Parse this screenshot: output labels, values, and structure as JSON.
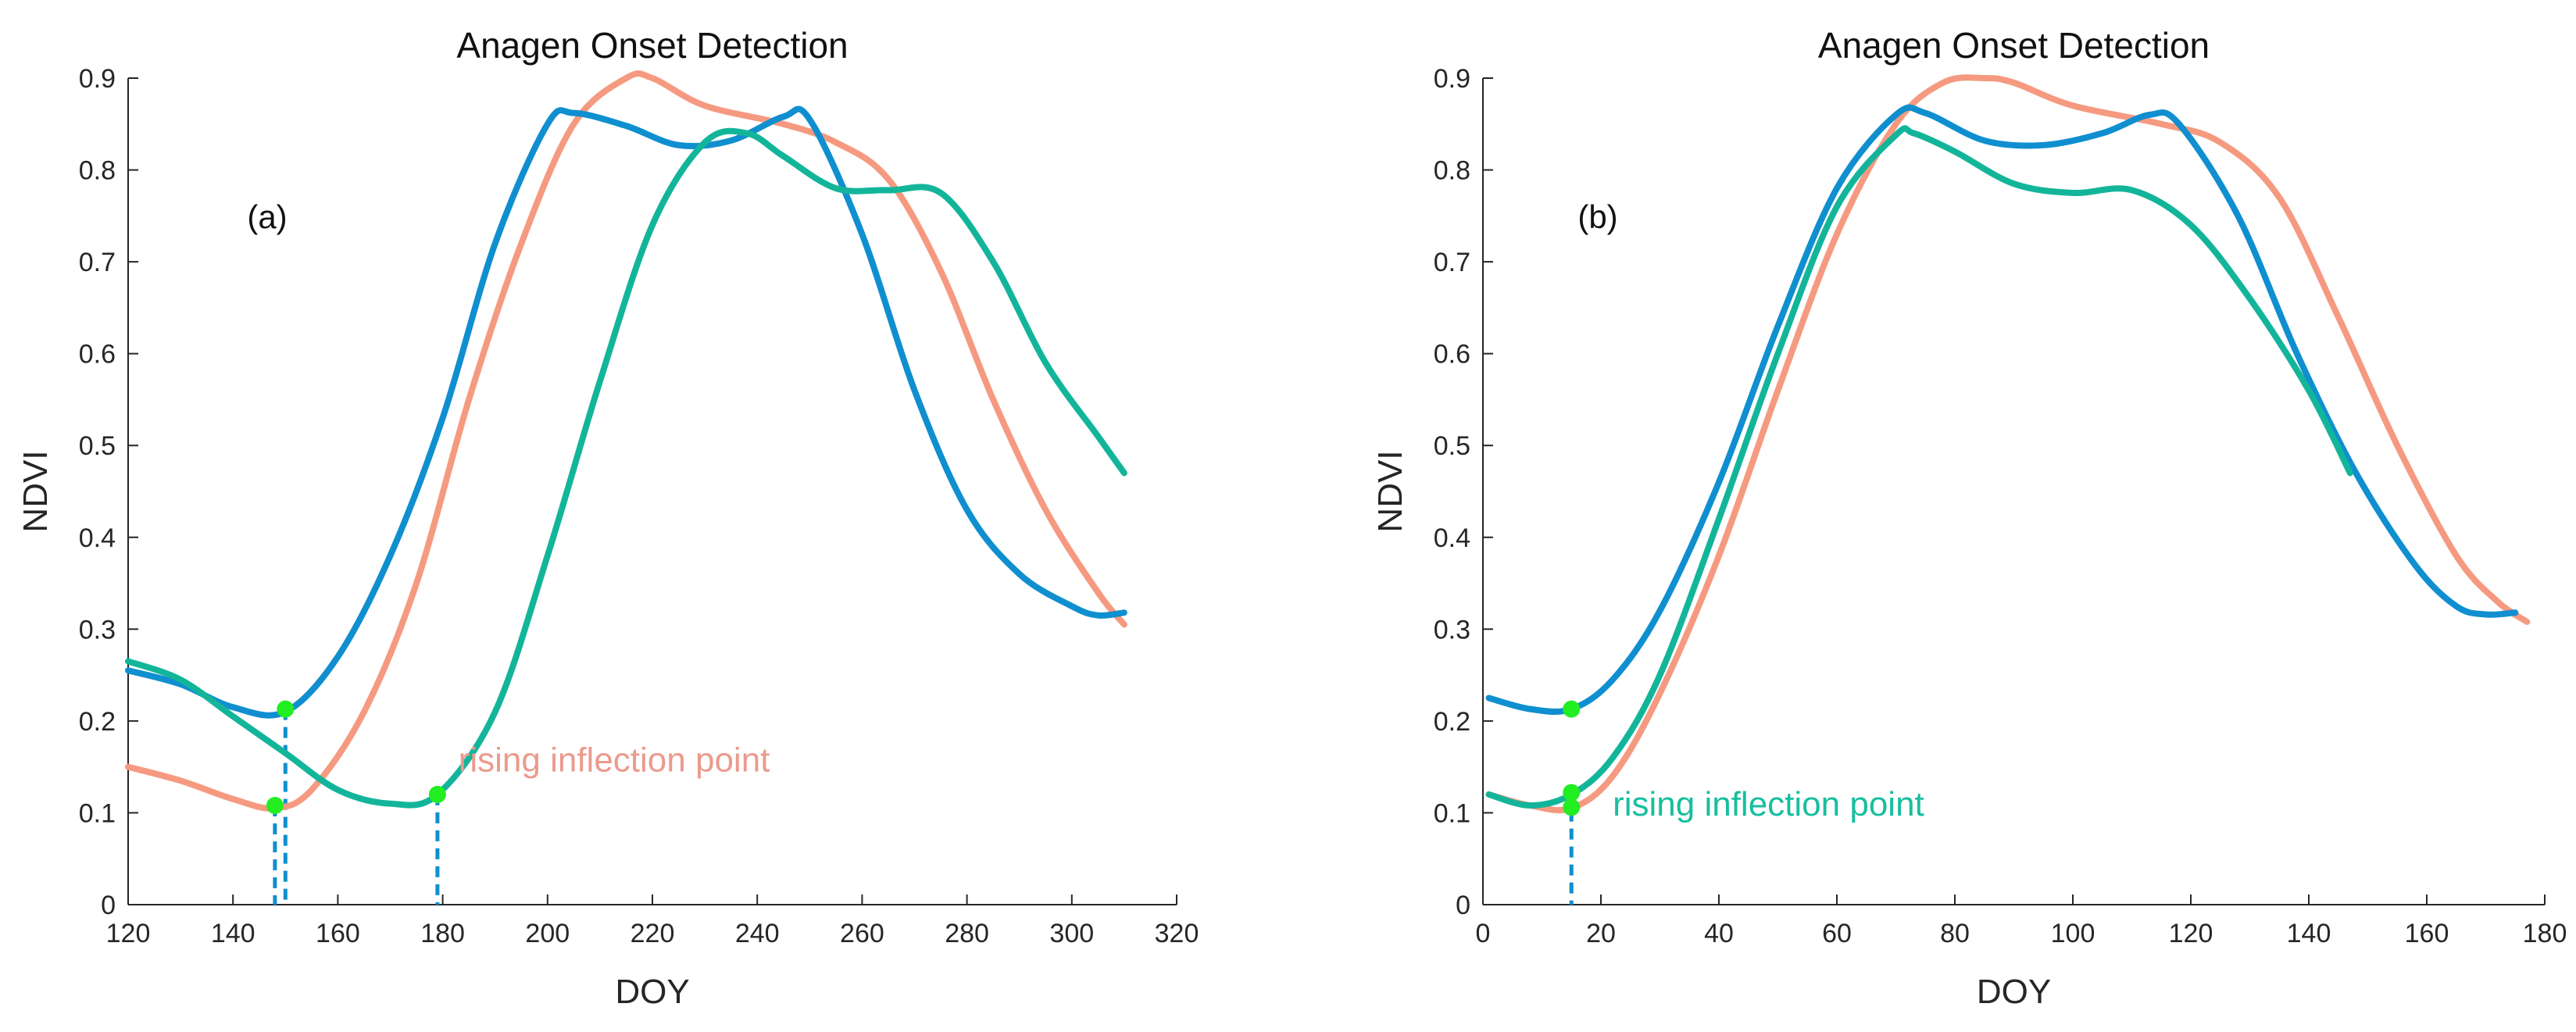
{
  "figure": {
    "colors": {
      "blue": "#0f8fcf",
      "salmon": "#f59a80",
      "teal": "#13b59a",
      "marker": "#22ee22",
      "annot_salmon": "#eb9a8c",
      "annot_teal": "#18be9e",
      "axis": "#262626"
    }
  },
  "chart_data": [
    {
      "type": "line",
      "title": "Anagen Onset Detection",
      "panel_label": "(a)",
      "xlabel": "DOY",
      "ylabel": "NDVI",
      "xlim": [
        120,
        320
      ],
      "ylim": [
        0,
        0.9
      ],
      "xticks": [
        120,
        140,
        160,
        180,
        200,
        220,
        240,
        260,
        280,
        300,
        320
      ],
      "yticks": [
        0,
        0.1,
        0.2,
        0.3,
        0.4,
        0.5,
        0.6,
        0.7,
        0.8,
        0.9
      ],
      "xtick_labels": [
        "120",
        "140",
        "160",
        "180",
        "200",
        "220",
        "240",
        "260",
        "280",
        "300",
        "320"
      ],
      "ytick_labels": [
        "0",
        "0.1",
        "0.2",
        "0.3",
        "0.4",
        "0.5",
        "0.6",
        "0.7",
        "0.8",
        "0.9"
      ],
      "grid": false,
      "series": [
        {
          "name": "salmon",
          "color": "#f59a80",
          "x": [
            120,
            130,
            140,
            148,
            155,
            165,
            175,
            185,
            195,
            205,
            215,
            220,
            230,
            245,
            255,
            265,
            275,
            285,
            295,
            305,
            310
          ],
          "y": [
            0.15,
            0.135,
            0.115,
            0.105,
            0.125,
            0.21,
            0.35,
            0.55,
            0.72,
            0.85,
            0.9,
            0.9,
            0.87,
            0.85,
            0.83,
            0.79,
            0.69,
            0.55,
            0.43,
            0.34,
            0.305
          ]
        },
        {
          "name": "blue",
          "color": "#0f8fcf",
          "x": [
            120,
            130,
            140,
            150,
            160,
            170,
            180,
            190,
            200,
            205,
            215,
            225,
            235,
            245,
            250,
            260,
            270,
            280,
            290,
            300,
            305,
            310
          ],
          "y": [
            0.255,
            0.24,
            0.215,
            0.21,
            0.27,
            0.38,
            0.53,
            0.72,
            0.85,
            0.862,
            0.848,
            0.827,
            0.832,
            0.858,
            0.855,
            0.73,
            0.56,
            0.43,
            0.36,
            0.325,
            0.315,
            0.318
          ]
        },
        {
          "name": "teal",
          "color": "#13b59a",
          "x": [
            120,
            130,
            140,
            150,
            160,
            170,
            179,
            190,
            200,
            210,
            220,
            230,
            238,
            245,
            255,
            265,
            275,
            285,
            295,
            305,
            310
          ],
          "y": [
            0.265,
            0.245,
            0.205,
            0.165,
            0.125,
            0.11,
            0.12,
            0.21,
            0.38,
            0.57,
            0.74,
            0.83,
            0.84,
            0.815,
            0.78,
            0.778,
            0.775,
            0.7,
            0.59,
            0.51,
            0.47
          ]
        }
      ],
      "markers": [
        {
          "series": "blue",
          "x": 150,
          "y": 0.213
        },
        {
          "series": "salmon",
          "x": 148,
          "y": 0.108
        },
        {
          "series": "teal",
          "x": 179,
          "y": 0.12
        }
      ],
      "dashed_verticals": [
        {
          "x": 148,
          "y": 0.108
        },
        {
          "x": 150,
          "y": 0.213
        },
        {
          "x": 179,
          "y": 0.12
        }
      ],
      "annotation": {
        "text": "rising inflection point",
        "x": 183,
        "y": 0.145,
        "color": "#eb9a8c"
      }
    },
    {
      "type": "line",
      "title": "Anagen Onset Detection",
      "panel_label": "(b)",
      "xlabel": "DOY",
      "ylabel": "NDVI",
      "xlim": [
        0,
        180
      ],
      "ylim": [
        0,
        0.9
      ],
      "xticks": [
        0,
        20,
        40,
        60,
        80,
        100,
        120,
        140,
        160,
        180
      ],
      "yticks": [
        0,
        0.1,
        0.2,
        0.3,
        0.4,
        0.5,
        0.6,
        0.7,
        0.8,
        0.9
      ],
      "xtick_labels": [
        "0",
        "20",
        "40",
        "60",
        "80",
        "100",
        "120",
        "140",
        "160",
        "180"
      ],
      "ytick_labels": [
        "0",
        "0.1",
        "0.2",
        "0.3",
        "0.4",
        "0.5",
        "0.6",
        "0.7",
        "0.8",
        "0.9"
      ],
      "grid": false,
      "series": [
        {
          "name": "salmon",
          "color": "#f59a80",
          "x": [
            1,
            8,
            15,
            22,
            30,
            40,
            50,
            60,
            70,
            78,
            85,
            90,
            100,
            115,
            125,
            135,
            145,
            155,
            165,
            172,
            177
          ],
          "y": [
            0.12,
            0.108,
            0.105,
            0.14,
            0.23,
            0.38,
            0.56,
            0.73,
            0.85,
            0.895,
            0.9,
            0.895,
            0.87,
            0.85,
            0.83,
            0.77,
            0.64,
            0.5,
            0.38,
            0.33,
            0.308
          ]
        },
        {
          "name": "blue",
          "color": "#0f8fcf",
          "x": [
            1,
            8,
            15,
            22,
            30,
            40,
            50,
            60,
            70,
            75,
            85,
            95,
            105,
            113,
            118,
            128,
            138,
            148,
            158,
            165,
            170,
            175
          ],
          "y": [
            0.225,
            0.213,
            0.213,
            0.245,
            0.32,
            0.46,
            0.63,
            0.78,
            0.86,
            0.862,
            0.832,
            0.827,
            0.84,
            0.86,
            0.85,
            0.75,
            0.6,
            0.47,
            0.37,
            0.325,
            0.316,
            0.318
          ]
        },
        {
          "name": "teal",
          "color": "#13b59a",
          "x": [
            1,
            8,
            15,
            22,
            30,
            40,
            50,
            60,
            70,
            73,
            80,
            90,
            100,
            110,
            120,
            130,
            140,
            147
          ],
          "y": [
            0.12,
            0.108,
            0.12,
            0.16,
            0.25,
            0.42,
            0.6,
            0.76,
            0.838,
            0.84,
            0.82,
            0.785,
            0.775,
            0.778,
            0.74,
            0.66,
            0.56,
            0.47
          ]
        }
      ],
      "markers": [
        {
          "series": "blue",
          "x": 15,
          "y": 0.213
        },
        {
          "series": "teal",
          "x": 15,
          "y": 0.122
        },
        {
          "series": "salmon",
          "x": 15,
          "y": 0.106
        }
      ],
      "dashed_verticals": [
        {
          "x": 15,
          "y": 0.122
        }
      ],
      "annotation": {
        "text": "rising inflection point",
        "x": 22,
        "y": 0.097,
        "color": "#18be9e"
      }
    }
  ]
}
